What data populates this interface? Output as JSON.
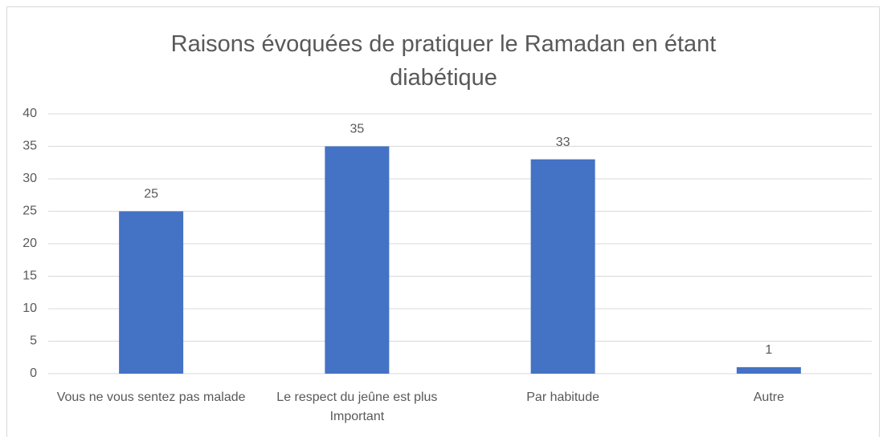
{
  "chart_data": {
    "type": "bar",
    "title": "Raisons évoquées de pratiquer le Ramadan en étant diabétique",
    "categories": [
      "Vous ne vous sentez pas malade",
      "Le respect du jeûne est plus Important",
      "Par habitude",
      "Autre"
    ],
    "values": [
      25,
      35,
      33,
      1
    ],
    "color": "#4472c4",
    "ylim": [
      0,
      40
    ],
    "yticks": [
      0,
      5,
      10,
      15,
      20,
      25,
      30,
      35,
      40
    ],
    "grid": true
  }
}
